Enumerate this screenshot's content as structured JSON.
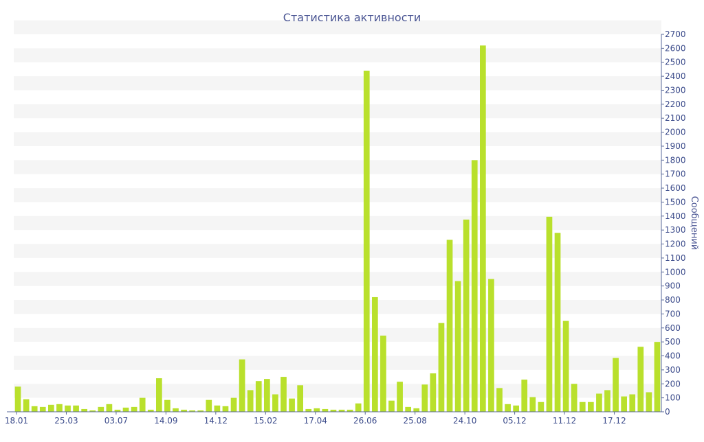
{
  "chart_data": {
    "type": "bar",
    "title": "Статистика активности",
    "ylabel": "Сообщений",
    "xlabel": "",
    "ylim": [
      0,
      2700
    ],
    "y_ticks": [
      0,
      100,
      200,
      300,
      400,
      500,
      600,
      700,
      800,
      900,
      1000,
      1100,
      1200,
      1300,
      1400,
      1500,
      1600,
      1700,
      1800,
      1900,
      2000,
      2100,
      2200,
      2300,
      2400,
      2500,
      2600,
      2700
    ],
    "y_axis_position": "right",
    "grid": "horizontal bands",
    "x_tick_labels": [
      {
        "index": 0,
        "label": "18.01"
      },
      {
        "index": 6,
        "label": "25.03"
      },
      {
        "index": 12,
        "label": "03.07"
      },
      {
        "index": 18,
        "label": "14.09"
      },
      {
        "index": 24,
        "label": "14.12"
      },
      {
        "index": 30,
        "label": "15.02"
      },
      {
        "index": 36,
        "label": "17.04"
      },
      {
        "index": 42,
        "label": "26.06"
      },
      {
        "index": 48,
        "label": "25.08"
      },
      {
        "index": 54,
        "label": "24.10"
      },
      {
        "index": 60,
        "label": "05.12"
      },
      {
        "index": 66,
        "label": "11.12"
      },
      {
        "index": 72,
        "label": "17.12"
      }
    ],
    "series": [
      {
        "color": "#b9e02c",
        "values": [
          180,
          90,
          40,
          35,
          50,
          55,
          45,
          45,
          20,
          10,
          35,
          55,
          15,
          30,
          35,
          100,
          15,
          240,
          85,
          25,
          15,
          10,
          10,
          85,
          45,
          40,
          100,
          375,
          155,
          220,
          235,
          125,
          250,
          95,
          190,
          20,
          25,
          20,
          15,
          15,
          15,
          60,
          2440,
          820,
          545,
          80,
          215,
          35,
          25,
          195,
          275,
          635,
          1230,
          935,
          1375,
          1800,
          2620,
          950,
          170,
          55,
          45,
          230,
          105,
          70,
          1395,
          1280,
          650,
          200,
          70,
          70,
          130,
          155,
          385,
          110,
          125,
          465,
          140,
          500
        ]
      }
    ]
  },
  "colors": {
    "title": "#4a5593",
    "axis": "#5a6a9b",
    "tick_label": "#3a4a8a",
    "band": "#f5f5f5",
    "bar": "#b9e02c"
  }
}
